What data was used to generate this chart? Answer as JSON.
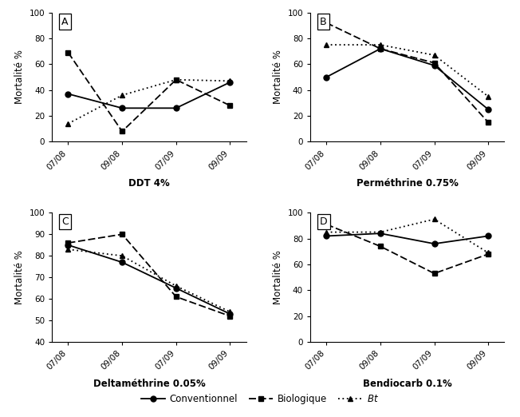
{
  "x_labels": [
    "07/08",
    "09/08",
    "07/09",
    "09/09"
  ],
  "x_ticks": [
    0,
    1,
    2,
    3
  ],
  "A": {
    "title": "DDT 4%",
    "conventionnel": [
      37,
      26,
      26,
      46
    ],
    "biologique": [
      69,
      8,
      48,
      28
    ],
    "bt": [
      14,
      36,
      48,
      47
    ],
    "ylim": [
      0,
      100
    ],
    "yticks": [
      0,
      20,
      40,
      60,
      80,
      100
    ]
  },
  "B": {
    "title": "Perméthrine 0.75%",
    "conventionnel": [
      50,
      72,
      59,
      25
    ],
    "biologique": [
      92,
      72,
      61,
      15
    ],
    "bt": [
      75,
      75,
      67,
      35
    ],
    "ylim": [
      0,
      100
    ],
    "yticks": [
      0,
      20,
      40,
      60,
      80,
      100
    ]
  },
  "C": {
    "title": "Deltaméthrine 0.05%",
    "conventionnel": [
      85,
      77,
      65,
      53
    ],
    "biologique": [
      86,
      90,
      61,
      52
    ],
    "bt": [
      83,
      80,
      66,
      54
    ],
    "ylim": [
      40,
      100
    ],
    "yticks": [
      40,
      50,
      60,
      70,
      80,
      90,
      100
    ]
  },
  "D": {
    "title": "Bendiocarb 0.1%",
    "conventionnel": [
      82,
      84,
      76,
      82
    ],
    "biologique": [
      91,
      74,
      53,
      68
    ],
    "bt": [
      85,
      85,
      95,
      69
    ],
    "ylim": [
      0,
      100
    ],
    "yticks": [
      0,
      20,
      40,
      60,
      80,
      100
    ]
  },
  "ylabel": "Mortalité %",
  "panel_labels": [
    "A",
    "B",
    "C",
    "D"
  ],
  "titles": [
    "DDT 4%",
    "Perméthrine 0.75%",
    "Deltaméthrine 0.05%",
    "Bendiocarb 0.1%"
  ]
}
